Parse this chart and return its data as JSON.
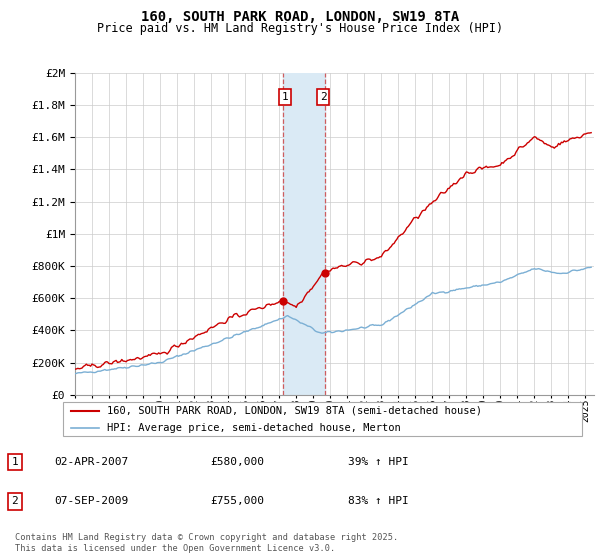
{
  "title": "160, SOUTH PARK ROAD, LONDON, SW19 8TA",
  "subtitle": "Price paid vs. HM Land Registry's House Price Index (HPI)",
  "legend_line1": "160, SOUTH PARK ROAD, LONDON, SW19 8TA (semi-detached house)",
  "legend_line2": "HPI: Average price, semi-detached house, Merton",
  "footnote": "Contains HM Land Registry data © Crown copyright and database right 2025.\nThis data is licensed under the Open Government Licence v3.0.",
  "transaction1_label": "1",
  "transaction1_date": "02-APR-2007",
  "transaction1_price": "£580,000",
  "transaction1_hpi": "39% ↑ HPI",
  "transaction2_label": "2",
  "transaction2_date": "07-SEP-2009",
  "transaction2_price": "£755,000",
  "transaction2_hpi": "83% ↑ HPI",
  "shade_start": 2007.25,
  "shade_end": 2009.67,
  "red_color": "#cc0000",
  "blue_color": "#7bafd4",
  "shade_color": "#daeaf5",
  "point1_x": 2007.25,
  "point1_y": 580000,
  "point2_x": 2009.67,
  "point2_y": 755000,
  "ylim": [
    0,
    2000000
  ],
  "xlim": [
    1995.0,
    2025.5
  ]
}
